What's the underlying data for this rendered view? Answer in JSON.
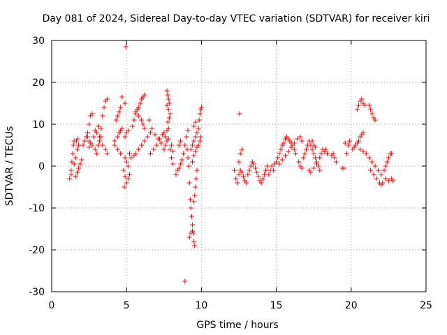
{
  "chart_data": {
    "type": "scatter",
    "title": "Day 081 of 2024, Sidereal Day-to-day VTEC variation (SDTVAR) for receiver kiri",
    "xlabel": "GPS time / hours",
    "ylabel": "SDTVAR / TECUs",
    "xlim": [
      0,
      25
    ],
    "ylim": [
      -30,
      30
    ],
    "xticks": [
      0,
      5,
      10,
      15,
      20,
      25
    ],
    "xtick_labels": [
      "0",
      "5",
      "10",
      "15",
      "20",
      "25"
    ],
    "yticks": [
      -30,
      -20,
      -10,
      0,
      10,
      20,
      30
    ],
    "ytick_labels": [
      "-30",
      "-20",
      "-10",
      "0",
      "10",
      "20",
      "30"
    ],
    "grid": true,
    "marker": "+",
    "color": "#ff0000",
    "series": [
      {
        "name": "SDTVAR",
        "points": [
          [
            1.2,
            -3.0
          ],
          [
            1.3,
            -1.0
          ],
          [
            1.35,
            1.0
          ],
          [
            1.4,
            3.0
          ],
          [
            1.45,
            5.0
          ],
          [
            1.5,
            6.0
          ],
          [
            1.3,
            -2.0
          ],
          [
            1.5,
            0.5
          ],
          [
            1.6,
            2.0
          ],
          [
            1.7,
            4.0
          ],
          [
            1.8,
            5.0
          ],
          [
            1.6,
            -2.5
          ],
          [
            1.7,
            -1.5
          ],
          [
            1.8,
            -0.5
          ],
          [
            1.9,
            0.5
          ],
          [
            2.0,
            1.5
          ],
          [
            1.65,
            6.0
          ],
          [
            1.75,
            6.5
          ],
          [
            2.1,
            5.0
          ],
          [
            2.2,
            6.0
          ],
          [
            2.3,
            7.0
          ],
          [
            2.4,
            8.0
          ],
          [
            2.5,
            10.0
          ],
          [
            2.6,
            12.0
          ],
          [
            2.7,
            12.5
          ],
          [
            2.5,
            4.5
          ],
          [
            2.6,
            5.5
          ],
          [
            2.8,
            7.0
          ],
          [
            2.9,
            8.5
          ],
          [
            2.4,
            7.0
          ],
          [
            2.5,
            6.0
          ],
          [
            2.7,
            5.0
          ],
          [
            2.9,
            4.0
          ],
          [
            3.0,
            3.0
          ],
          [
            3.1,
            5.0
          ],
          [
            3.2,
            7.0
          ],
          [
            3.3,
            9.0
          ],
          [
            3.4,
            12.0
          ],
          [
            3.5,
            14.0
          ],
          [
            3.6,
            15.5
          ],
          [
            3.7,
            16.0
          ],
          [
            3.2,
            6.0
          ],
          [
            3.4,
            5.0
          ],
          [
            3.6,
            4.0
          ],
          [
            3.7,
            3.0
          ],
          [
            3.0,
            8.0
          ],
          [
            3.1,
            9.5
          ],
          [
            3.3,
            7.0
          ],
          [
            4.2,
            6.0
          ],
          [
            4.4,
            7.0
          ],
          [
            4.5,
            8.0
          ],
          [
            4.6,
            8.5
          ],
          [
            4.7,
            9.0
          ],
          [
            4.3,
            11.0
          ],
          [
            4.4,
            12.0
          ],
          [
            4.5,
            13.0
          ],
          [
            4.6,
            14.0
          ],
          [
            4.7,
            16.5
          ],
          [
            4.9,
            15.0
          ],
          [
            4.2,
            5.0
          ],
          [
            4.4,
            4.0
          ],
          [
            4.6,
            3.0
          ],
          [
            4.8,
            -1.0
          ],
          [
            4.9,
            -2.5
          ],
          [
            5.0,
            -4.0
          ],
          [
            4.85,
            -5.0
          ],
          [
            5.1,
            -3.0
          ],
          [
            5.2,
            -2.0
          ],
          [
            4.95,
            28.5
          ],
          [
            4.9,
            7.0
          ],
          [
            5.0,
            8.0
          ],
          [
            5.1,
            8.5
          ],
          [
            5.2,
            3.0
          ],
          [
            5.3,
            2.0
          ],
          [
            4.9,
            2.0
          ],
          [
            5.0,
            1.0
          ],
          [
            5.1,
            0.0
          ],
          [
            5.5,
            2.5
          ],
          [
            5.6,
            3.0
          ],
          [
            5.8,
            4.0
          ],
          [
            6.0,
            5.0
          ],
          [
            6.2,
            6.0
          ],
          [
            6.4,
            7.0
          ],
          [
            6.6,
            8.0
          ],
          [
            5.4,
            9.5
          ],
          [
            5.5,
            11.0
          ],
          [
            5.6,
            12.5
          ],
          [
            5.7,
            13.5
          ],
          [
            5.8,
            14.0
          ],
          [
            5.9,
            15.0
          ],
          [
            6.0,
            16.0
          ],
          [
            6.1,
            16.5
          ],
          [
            6.2,
            17.0
          ],
          [
            5.6,
            13.0
          ],
          [
            5.8,
            12.0
          ],
          [
            6.0,
            11.0
          ],
          [
            6.1,
            10.0
          ],
          [
            6.2,
            9.0
          ],
          [
            6.5,
            11.0
          ],
          [
            6.7,
            9.0
          ],
          [
            6.9,
            7.5
          ],
          [
            7.1,
            6.5
          ],
          [
            7.3,
            5.5
          ],
          [
            6.6,
            3.0
          ],
          [
            6.8,
            4.0
          ],
          [
            7.0,
            5.0
          ],
          [
            7.2,
            6.5
          ],
          [
            7.4,
            7.5
          ],
          [
            7.5,
            8.0
          ],
          [
            7.6,
            7.0
          ],
          [
            7.7,
            8.5
          ],
          [
            7.8,
            9.0
          ],
          [
            7.5,
            4.0
          ],
          [
            7.6,
            5.0
          ],
          [
            7.7,
            6.0
          ],
          [
            7.8,
            6.5
          ],
          [
            7.9,
            4.0
          ],
          [
            8.0,
            2.0
          ],
          [
            8.1,
            0.5
          ],
          [
            8.0,
            5.0
          ],
          [
            8.1,
            3.5
          ],
          [
            7.7,
            18.0
          ],
          [
            7.75,
            17.0
          ],
          [
            7.8,
            16.0
          ],
          [
            7.85,
            15.0
          ],
          [
            7.7,
            14.5
          ],
          [
            7.8,
            13.5
          ],
          [
            7.9,
            12.5
          ],
          [
            7.75,
            10.5
          ],
          [
            7.85,
            11.5
          ],
          [
            8.3,
            -2.0
          ],
          [
            8.4,
            -1.0
          ],
          [
            8.5,
            -0.5
          ],
          [
            8.6,
            0.5
          ],
          [
            8.7,
            1.5
          ],
          [
            8.8,
            3.0
          ],
          [
            8.9,
            5.0
          ],
          [
            9.0,
            7.0
          ],
          [
            9.1,
            8.5
          ],
          [
            8.5,
            5.0
          ],
          [
            8.6,
            6.0
          ],
          [
            8.9,
            -27.5
          ],
          [
            9.05,
            4.0
          ],
          [
            9.1,
            2.0
          ],
          [
            9.15,
            0.0
          ],
          [
            9.2,
            -4.0
          ],
          [
            9.25,
            -8.0
          ],
          [
            9.3,
            -10.0
          ],
          [
            9.35,
            -12.0
          ],
          [
            9.4,
            -14.0
          ],
          [
            9.45,
            -16.0
          ],
          [
            9.2,
            -17.0
          ],
          [
            9.3,
            -16.0
          ],
          [
            9.4,
            -15.5
          ],
          [
            9.5,
            -18.0
          ],
          [
            9.55,
            -19.0
          ],
          [
            9.5,
            -8.5
          ],
          [
            9.55,
            -7.0
          ],
          [
            9.6,
            -5.0
          ],
          [
            9.65,
            -3.0
          ],
          [
            9.7,
            -1.0
          ],
          [
            9.3,
            4.0
          ],
          [
            9.4,
            5.0
          ],
          [
            9.5,
            6.0
          ],
          [
            9.6,
            7.0
          ],
          [
            9.7,
            8.0
          ],
          [
            9.8,
            9.0
          ],
          [
            9.85,
            11.0
          ],
          [
            9.9,
            12.5
          ],
          [
            9.95,
            13.5
          ],
          [
            10.0,
            14.0
          ],
          [
            9.4,
            1.0
          ],
          [
            9.5,
            2.5
          ],
          [
            9.6,
            3.5
          ],
          [
            9.7,
            4.5
          ],
          [
            9.8,
            5.0
          ],
          [
            9.9,
            6.0
          ],
          [
            9.95,
            7.0
          ],
          [
            9.5,
            9.5
          ],
          [
            9.6,
            10.5
          ],
          [
            12.2,
            -1.0
          ],
          [
            12.3,
            -3.0
          ],
          [
            12.4,
            -4.0
          ],
          [
            12.5,
            -2.0
          ],
          [
            12.6,
            -1.0
          ],
          [
            12.5,
            1.0
          ],
          [
            12.6,
            3.0
          ],
          [
            12.7,
            4.0
          ],
          [
            12.55,
            12.5
          ],
          [
            12.7,
            -1.5
          ],
          [
            12.8,
            -2.5
          ],
          [
            12.9,
            -3.5
          ],
          [
            13.0,
            -4.0
          ],
          [
            13.1,
            -2.0
          ],
          [
            13.2,
            -1.0
          ],
          [
            13.3,
            0.0
          ],
          [
            13.4,
            1.0
          ],
          [
            13.5,
            0.5
          ],
          [
            13.6,
            -0.5
          ],
          [
            13.7,
            -1.5
          ],
          [
            13.8,
            -2.5
          ],
          [
            13.9,
            -3.5
          ],
          [
            14.0,
            -4.0
          ],
          [
            14.1,
            -3.0
          ],
          [
            14.2,
            -2.0
          ],
          [
            14.3,
            -1.0
          ],
          [
            14.4,
            0.0
          ],
          [
            14.5,
            -2.0
          ],
          [
            14.6,
            -1.0
          ],
          [
            14.7,
            0.0
          ],
          [
            14.8,
            -1.0
          ],
          [
            14.9,
            0.5
          ],
          [
            15.0,
            1.0
          ],
          [
            15.1,
            2.0
          ],
          [
            15.2,
            3.0
          ],
          [
            15.3,
            4.0
          ],
          [
            15.4,
            5.0
          ],
          [
            15.5,
            5.5
          ],
          [
            15.6,
            6.5
          ],
          [
            15.7,
            7.0
          ],
          [
            15.8,
            6.5
          ],
          [
            15.9,
            6.0
          ],
          [
            16.0,
            5.5
          ],
          [
            16.1,
            5.0
          ],
          [
            16.2,
            4.0
          ],
          [
            16.3,
            3.0
          ],
          [
            15.2,
            0.5
          ],
          [
            15.4,
            1.5
          ],
          [
            15.6,
            2.5
          ],
          [
            15.8,
            3.5
          ],
          [
            16.0,
            4.5
          ],
          [
            16.2,
            5.5
          ],
          [
            16.4,
            6.5
          ],
          [
            16.6,
            7.0
          ],
          [
            16.7,
            6.0
          ],
          [
            16.5,
            1.0
          ],
          [
            16.6,
            0.0
          ],
          [
            16.7,
            -0.5
          ],
          [
            16.8,
            2.0
          ],
          [
            16.9,
            3.0
          ],
          [
            17.0,
            4.0
          ],
          [
            17.1,
            5.0
          ],
          [
            17.2,
            6.0
          ],
          [
            17.3,
            5.0
          ],
          [
            17.4,
            4.0
          ],
          [
            17.5,
            3.0
          ],
          [
            17.6,
            2.0
          ],
          [
            17.7,
            1.0
          ],
          [
            17.8,
            0.0
          ],
          [
            17.9,
            -1.0
          ],
          [
            17.4,
            6.0
          ],
          [
            17.5,
            5.0
          ],
          [
            17.6,
            4.5
          ],
          [
            17.2,
            -1.0
          ],
          [
            17.3,
            -1.5
          ],
          [
            17.5,
            -0.5
          ],
          [
            17.7,
            0.5
          ],
          [
            17.9,
            2.0
          ],
          [
            18.0,
            3.0
          ],
          [
            18.1,
            4.0
          ],
          [
            18.2,
            3.5
          ],
          [
            18.3,
            4.0
          ],
          [
            18.4,
            3.0
          ],
          [
            18.7,
            2.5
          ],
          [
            18.8,
            3.0
          ],
          [
            18.9,
            2.0
          ],
          [
            19.0,
            1.0
          ],
          [
            19.4,
            -0.5
          ],
          [
            19.5,
            -0.5
          ],
          [
            19.7,
            3.0
          ],
          [
            19.8,
            5.0
          ],
          [
            19.9,
            6.0
          ],
          [
            19.6,
            5.5
          ],
          [
            20.1,
            4.0
          ],
          [
            20.2,
            4.5
          ],
          [
            20.3,
            5.0
          ],
          [
            20.4,
            5.5
          ],
          [
            20.5,
            6.0
          ],
          [
            20.6,
            7.0
          ],
          [
            20.7,
            7.5
          ],
          [
            20.8,
            8.0
          ],
          [
            20.4,
            13.5
          ],
          [
            20.5,
            14.5
          ],
          [
            20.6,
            15.5
          ],
          [
            20.7,
            16.0
          ],
          [
            20.8,
            15.0
          ],
          [
            20.9,
            14.5
          ],
          [
            21.2,
            14.5
          ],
          [
            21.3,
            13.5
          ],
          [
            21.4,
            12.5
          ],
          [
            21.5,
            11.5
          ],
          [
            21.6,
            11.0
          ],
          [
            20.6,
            4.0
          ],
          [
            20.8,
            3.5
          ],
          [
            21.0,
            3.0
          ],
          [
            21.2,
            2.0
          ],
          [
            21.4,
            1.0
          ],
          [
            21.6,
            0.0
          ],
          [
            21.8,
            -1.0
          ],
          [
            22.0,
            -2.0
          ],
          [
            21.3,
            -1.0
          ],
          [
            21.5,
            -2.0
          ],
          [
            21.7,
            -3.0
          ],
          [
            21.9,
            -4.0
          ],
          [
            22.0,
            -4.5
          ],
          [
            22.1,
            -4.0
          ],
          [
            22.2,
            -1.0
          ],
          [
            22.3,
            0.0
          ],
          [
            22.4,
            1.0
          ],
          [
            22.5,
            2.0
          ],
          [
            22.6,
            3.0
          ],
          [
            22.7,
            3.0
          ],
          [
            22.3,
            -3.0
          ],
          [
            22.5,
            -3.5
          ],
          [
            22.7,
            -3.0
          ],
          [
            22.8,
            -3.5
          ]
        ]
      }
    ]
  }
}
